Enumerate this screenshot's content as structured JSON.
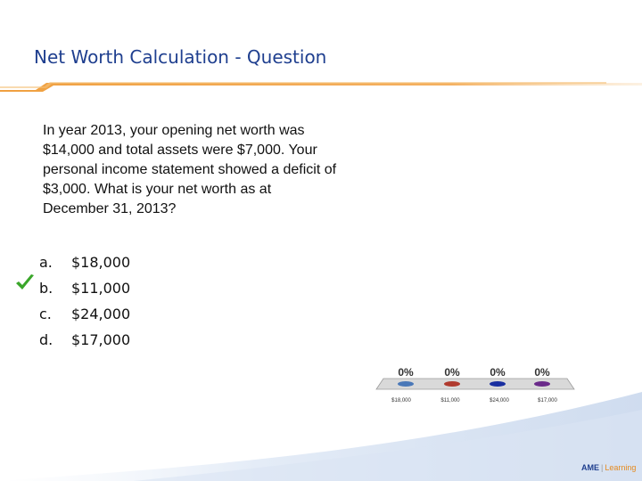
{
  "slide": {
    "title": "Net Worth Calculation - Question",
    "question": "In year 2013, your opening net worth was $14,000 and total assets were $7,000. Your personal income statement showed a deficit of $3,000. What is your net worth as at December 31, 2013?",
    "options": [
      {
        "letter": "a.",
        "value": "$18,000",
        "correct": false
      },
      {
        "letter": "b.",
        "value": "$11,000",
        "correct": true
      },
      {
        "letter": "c.",
        "value": "$24,000",
        "correct": false
      },
      {
        "letter": "d.",
        "value": "$17,000",
        "correct": false
      }
    ]
  },
  "poll": {
    "bars": [
      {
        "percent": "0%",
        "label": "$18,000",
        "color": "#4a78b8"
      },
      {
        "percent": "0%",
        "label": "$11,000",
        "color": "#b03a2e"
      },
      {
        "percent": "0%",
        "label": "$24,000",
        "color": "#1a2fa0"
      },
      {
        "percent": "0%",
        "label": "$17,000",
        "color": "#6a2a8a"
      }
    ]
  },
  "logo": {
    "brand": "AME",
    "sep": "|",
    "suffix": "Learning"
  },
  "colors": {
    "title": "#1f3f8f",
    "accent": "#f0a040",
    "check": "#3aa62a"
  }
}
